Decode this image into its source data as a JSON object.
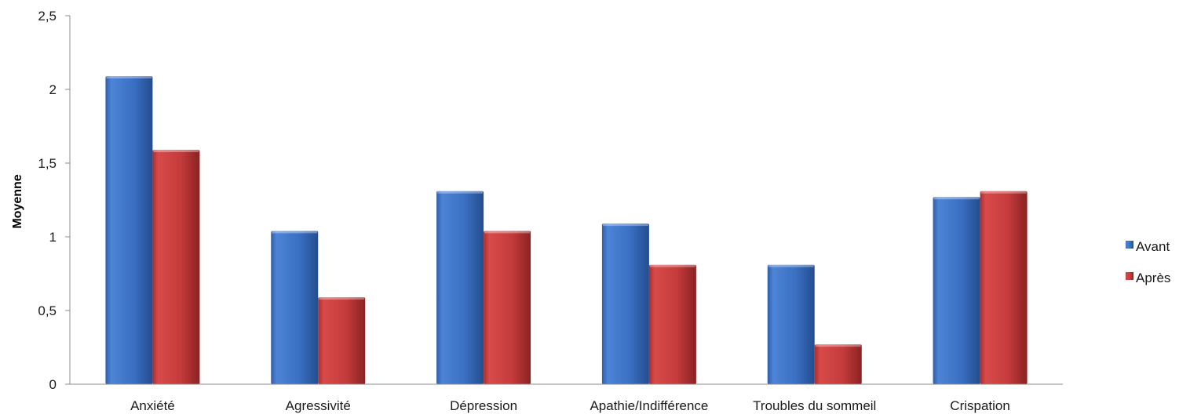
{
  "chart_data": {
    "type": "bar",
    "title": "",
    "xlabel": "",
    "ylabel": "Moyenne",
    "ylim": [
      0,
      2.5
    ],
    "yticks": [
      "0",
      "0,5",
      "1",
      "1,5",
      "2",
      "2,5"
    ],
    "categories": [
      "Anxiété",
      "Agressivité",
      "Dépression",
      "Apathie/Indifférence",
      "Troubles du sommeil",
      "Crispation"
    ],
    "series": [
      {
        "name": "Avant",
        "values": [
          2.09,
          1.04,
          1.31,
          1.09,
          0.81,
          1.27
        ],
        "color": "#3f73c4"
      },
      {
        "name": "Après",
        "values": [
          1.59,
          0.59,
          1.04,
          0.81,
          0.27,
          1.31
        ],
        "color": "#c53d3d"
      }
    ],
    "grid": false,
    "legend_position": "right"
  }
}
